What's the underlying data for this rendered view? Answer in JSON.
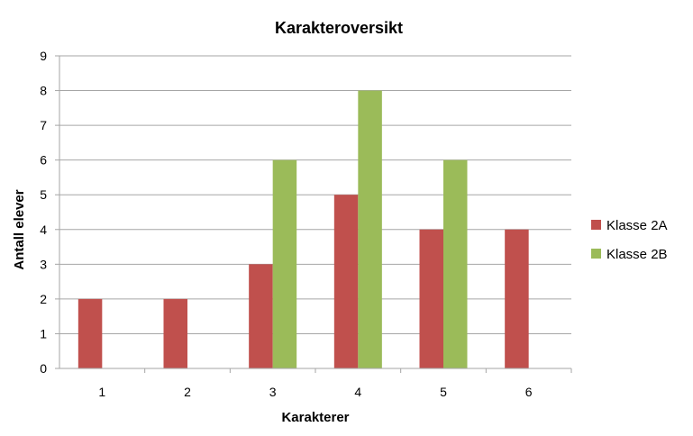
{
  "chart_data": {
    "type": "bar",
    "title": "Karakteroversikt",
    "xlabel": "Karakterer",
    "ylabel": "Antall elever",
    "categories": [
      "1",
      "2",
      "3",
      "4",
      "5",
      "6"
    ],
    "ylim": [
      0,
      9
    ],
    "yticks": [
      "0",
      "1",
      "2",
      "3",
      "4",
      "5",
      "6",
      "7",
      "8",
      "9"
    ],
    "grid": true,
    "legend_position": "right",
    "series": [
      {
        "name": "Klasse 2A",
        "color": "#c0504d",
        "values": [
          2,
          2,
          3,
          5,
          4,
          4
        ]
      },
      {
        "name": "Klasse 2B",
        "color": "#9bbb59",
        "values": [
          0,
          0,
          6,
          8,
          6,
          0
        ]
      }
    ]
  }
}
